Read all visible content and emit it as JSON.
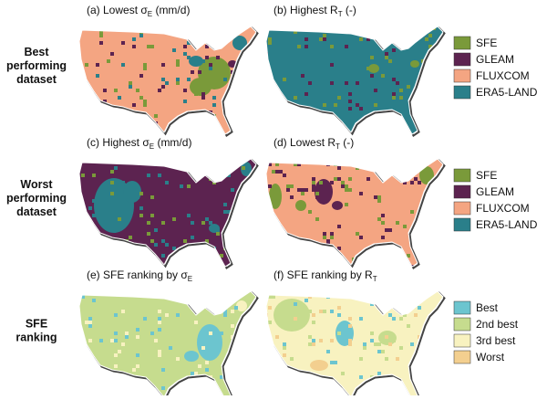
{
  "rows": [
    {
      "label": [
        "Best",
        "performing",
        "dataset"
      ]
    },
    {
      "label": [
        "Worst",
        "performing",
        "dataset"
      ]
    },
    {
      "label": [
        "SFE",
        "ranking"
      ]
    }
  ],
  "panels": [
    {
      "title": {
        "prefix": "(a) Lowest σ",
        "sub": "E",
        "suffix": " (mm/d)"
      }
    },
    {
      "title": {
        "prefix": "(b) Highest R",
        "sub": "T",
        "suffix": " (-)"
      }
    },
    {
      "title": {
        "prefix": "(c) Highest σ",
        "sub": "E",
        "suffix": " (mm/d)"
      }
    },
    {
      "title": {
        "prefix": "(d) Lowest R",
        "sub": "T",
        "suffix": " (-)"
      }
    },
    {
      "title": {
        "prefix": "(e) SFE ranking by σ",
        "sub": "E",
        "suffix": ""
      }
    },
    {
      "title": {
        "prefix": "(f) SFE ranking by R",
        "sub": "T",
        "suffix": ""
      }
    }
  ],
  "legends": [
    {
      "items": [
        {
          "label": "SFE",
          "color": "#7a9a3a"
        },
        {
          "label": "GLEAM",
          "color": "#5c2350"
        },
        {
          "label": "FLUXCOM",
          "color": "#f4a582"
        },
        {
          "label": "ERA5-LAND",
          "color": "#2a7f8a"
        }
      ]
    },
    {
      "items": [
        {
          "label": "SFE",
          "color": "#7a9a3a"
        },
        {
          "label": "GLEAM",
          "color": "#5c2350"
        },
        {
          "label": "FLUXCOM",
          "color": "#f4a582"
        },
        {
          "label": "ERA5-LAND",
          "color": "#2a7f8a"
        }
      ]
    },
    {
      "items": [
        {
          "label": "Best",
          "color": "#6cc5cf"
        },
        {
          "label": "2nd best",
          "color": "#c6dc8e"
        },
        {
          "label": "3rd best",
          "color": "#f8f2c0"
        },
        {
          "label": "Worst",
          "color": "#f3cf8f"
        }
      ]
    }
  ]
}
